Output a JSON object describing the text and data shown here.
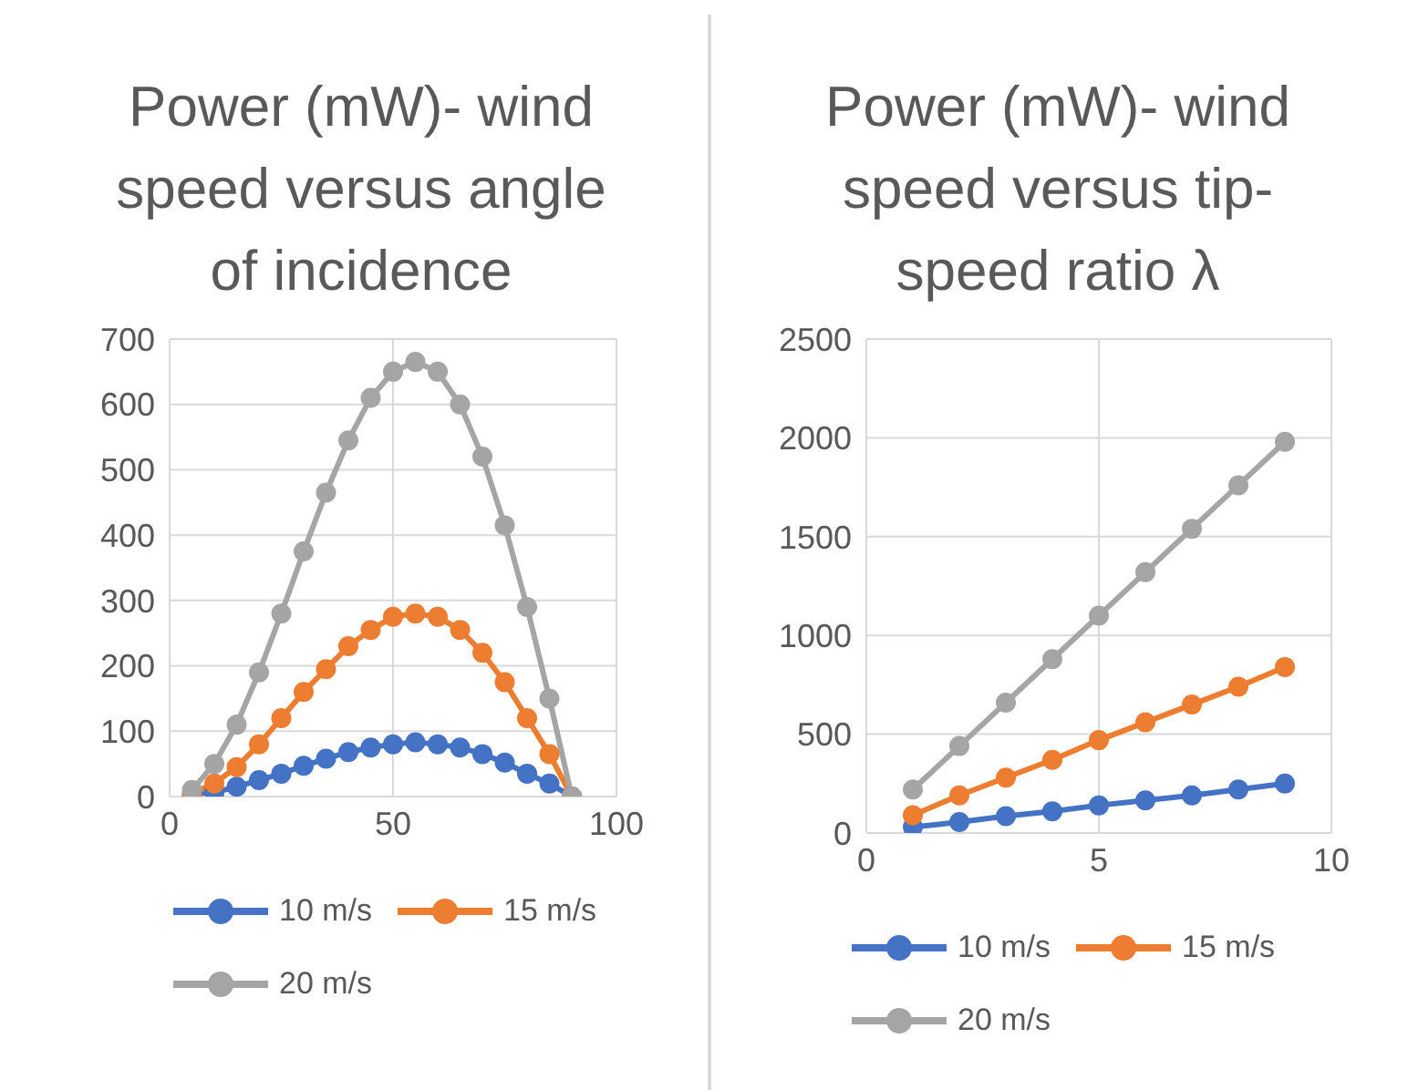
{
  "chart_data": [
    {
      "type": "line",
      "title": "Power (mW)- wind speed versus angle of incidence",
      "x": [
        5,
        10,
        15,
        20,
        25,
        30,
        35,
        40,
        45,
        50,
        55,
        60,
        65,
        70,
        75,
        80,
        85,
        90
      ],
      "xlim": [
        0,
        100
      ],
      "xticks": [
        0,
        50,
        100
      ],
      "ylim": [
        0,
        700
      ],
      "yticks": [
        0,
        100,
        200,
        300,
        400,
        500,
        600,
        700
      ],
      "grid": true,
      "legend": "bottom",
      "marker": "circle",
      "line_style": "solid",
      "series": [
        {
          "name": "10 m/s",
          "color": "#4472c4",
          "values": [
            2,
            6,
            15,
            25,
            35,
            47,
            58,
            68,
            75,
            80,
            83,
            80,
            75,
            65,
            52,
            35,
            20,
            0
          ]
        },
        {
          "name": "15 m/s",
          "color": "#ed7d31",
          "values": [
            5,
            20,
            45,
            80,
            120,
            160,
            195,
            230,
            255,
            275,
            280,
            275,
            255,
            220,
            175,
            120,
            65,
            0
          ]
        },
        {
          "name": "20 m/s",
          "color": "#a5a5a5",
          "values": [
            10,
            50,
            110,
            190,
            280,
            375,
            465,
            545,
            610,
            650,
            665,
            650,
            600,
            520,
            415,
            290,
            150,
            0
          ]
        }
      ]
    },
    {
      "type": "line",
      "title": "Power (mW)- wind speed versus tip-speed ratio λ",
      "x": [
        1,
        2,
        3,
        4,
        5,
        6,
        7,
        8,
        9
      ],
      "xlim": [
        0,
        10
      ],
      "xticks": [
        0,
        5,
        10
      ],
      "ylim": [
        0,
        2500
      ],
      "yticks": [
        0,
        500,
        1000,
        1500,
        2000,
        2500
      ],
      "grid": true,
      "legend": "bottom",
      "marker": "circle",
      "line_style": "solid",
      "series": [
        {
          "name": "10 m/s",
          "color": "#4472c4",
          "values": [
            30,
            55,
            85,
            110,
            140,
            165,
            190,
            220,
            250
          ]
        },
        {
          "name": "15 m/s",
          "color": "#ed7d31",
          "values": [
            90,
            190,
            280,
            370,
            470,
            560,
            650,
            740,
            840
          ]
        },
        {
          "name": "20 m/s",
          "color": "#a5a5a5",
          "values": [
            220,
            440,
            660,
            880,
            1100,
            1320,
            1540,
            1760,
            1980
          ]
        }
      ]
    }
  ]
}
